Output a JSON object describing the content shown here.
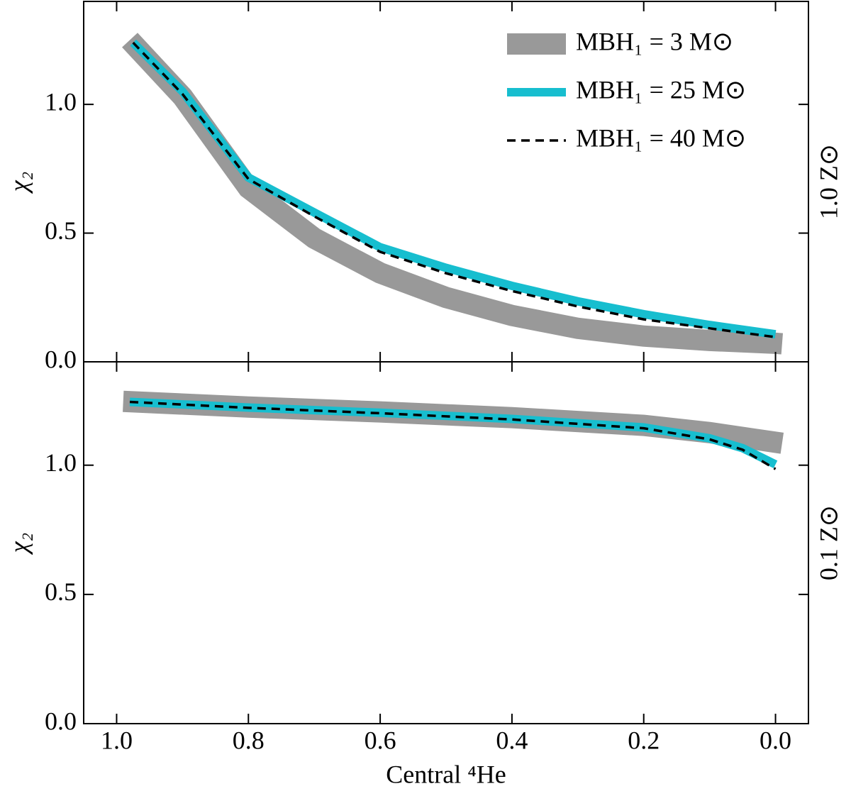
{
  "chart_data": [
    {
      "type": "line",
      "ylabel": "χ₂",
      "annotation": "1.0 Z⊙",
      "legend": "upper right",
      "xlim": [
        1.05,
        -0.05
      ],
      "xticks": [
        1.0,
        0.8,
        0.6,
        0.4,
        0.2,
        0.0
      ],
      "ylim": [
        0,
        1.4
      ],
      "yticks": [
        {
          "value": 0,
          "label": "0.0"
        },
        {
          "value": 0.5,
          "label": "0.5"
        },
        {
          "value": 1.0,
          "label": "1.0"
        }
      ],
      "series": [
        {
          "name": "MBH₁ = 3 M⊙",
          "color": "#999999",
          "x": [
            0.98,
            0.9,
            0.8,
            0.7,
            0.6,
            0.5,
            0.4,
            0.3,
            0.2,
            0.1,
            0.0,
            -0.01
          ],
          "values": [
            1.25,
            1.03,
            0.675,
            0.48,
            0.345,
            0.25,
            0.18,
            0.13,
            0.1,
            0.083,
            0.072,
            0.07
          ]
        },
        {
          "name": "MBH₁ = 25 M⊙",
          "color": "#17becf",
          "x": [
            0.975,
            0.9,
            0.8,
            0.7,
            0.6,
            0.5,
            0.4,
            0.3,
            0.2,
            0.1,
            0.0
          ],
          "values": [
            1.24,
            1.05,
            0.716,
            0.58,
            0.445,
            0.365,
            0.295,
            0.235,
            0.185,
            0.143,
            0.107
          ]
        },
        {
          "name": "MBH₁ = 40 M⊙",
          "color": "#000000",
          "x": [
            0.975,
            0.9,
            0.8,
            0.7,
            0.6,
            0.5,
            0.4,
            0.3,
            0.2,
            0.1,
            0.0
          ],
          "values": [
            1.24,
            1.04,
            0.71,
            0.565,
            0.427,
            0.344,
            0.275,
            0.215,
            0.165,
            0.13,
            0.096
          ]
        }
      ]
    },
    {
      "type": "line",
      "ylabel": "χ₂",
      "annotation": "0.1 Z⊙",
      "xlabel": "Central ⁴He",
      "xlim": [
        1.05,
        -0.05
      ],
      "xticks": [
        {
          "value": 1.0,
          "label": "1.0"
        },
        {
          "value": 0.8,
          "label": "0.8"
        },
        {
          "value": 0.6,
          "label": "0.6"
        },
        {
          "value": 0.4,
          "label": "0.4"
        },
        {
          "value": 0.2,
          "label": "0.2"
        },
        {
          "value": 0.0,
          "label": "0.0"
        }
      ],
      "ylim": [
        0,
        1.4
      ],
      "yticks": [
        {
          "value": 0,
          "label": "0.0"
        },
        {
          "value": 0.5,
          "label": "0.5"
        },
        {
          "value": 1.0,
          "label": "1.0"
        }
      ],
      "series": [
        {
          "color": "#999999",
          "x": [
            0.99,
            0.8,
            0.6,
            0.4,
            0.2,
            0.1,
            0.03,
            -0.01
          ],
          "values": [
            1.247,
            1.225,
            1.206,
            1.184,
            1.154,
            1.126,
            1.1,
            1.085
          ]
        },
        {
          "color": "#17becf",
          "x": [
            0.98,
            0.8,
            0.6,
            0.4,
            0.2,
            0.1,
            0.05,
            0.0
          ],
          "values": [
            1.245,
            1.223,
            1.203,
            1.179,
            1.146,
            1.104,
            1.066,
            1.003
          ]
        },
        {
          "color": "#000000",
          "x": [
            0.98,
            0.8,
            0.6,
            0.4,
            0.2,
            0.1,
            0.05,
            0.0
          ],
          "values": [
            1.245,
            1.222,
            1.201,
            1.177,
            1.143,
            1.1,
            1.06,
            0.985
          ]
        }
      ]
    }
  ]
}
